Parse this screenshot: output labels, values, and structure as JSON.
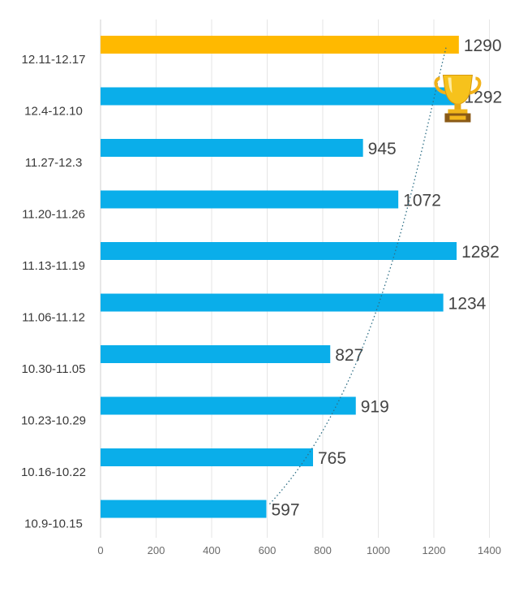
{
  "chart_data": {
    "type": "bar",
    "orientation": "horizontal",
    "categories": [
      "12.11-12.17",
      "12.4-12.10",
      "11.27-12.3",
      "11.20-11.26",
      "11.13-11.19",
      "11.06-11.12",
      "10.30-11.05",
      "10.23-10.29",
      "10.16-10.22",
      "10.9-10.15"
    ],
    "values": [
      1290,
      1292,
      945,
      1072,
      1282,
      1234,
      827,
      919,
      765,
      597
    ],
    "xlim": [
      0,
      1400
    ],
    "xticks": [
      0,
      200,
      400,
      600,
      800,
      1000,
      1200,
      1400
    ],
    "grid": true,
    "data_labels": true,
    "highlight_index": 0,
    "colors": {
      "bar": "#0aaeea",
      "highlight": "#ffb900",
      "trend": "#2f6f86"
    },
    "decorations": {
      "trophy_on_category": "12.4-12.10",
      "trophy_icon": "trophy-icon"
    },
    "trendline": "dotted curve"
  }
}
